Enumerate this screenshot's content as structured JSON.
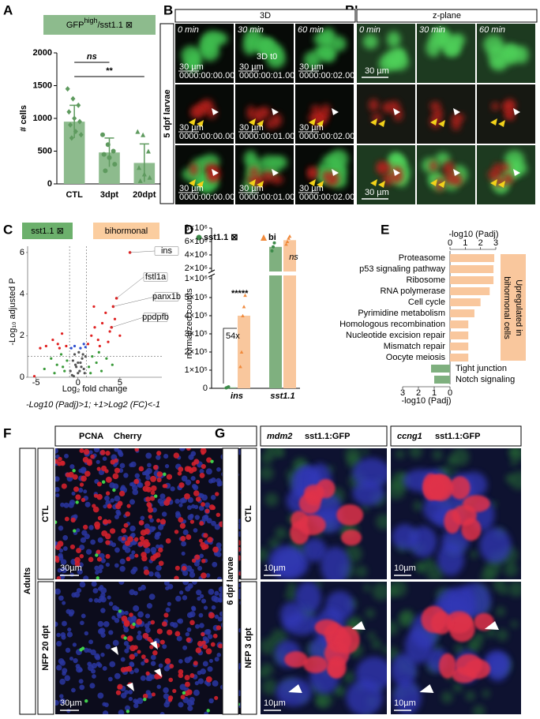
{
  "chart_data": [
    {
      "panel": "A",
      "type": "bar",
      "title": "GFP",
      "title_superscript": "high",
      "title_suffix": "/sst1.1 ⊠",
      "y_label": "# cells",
      "categories": [
        "CTL",
        "3dpt",
        "20dpt"
      ],
      "values": [
        950,
        480,
        320
      ],
      "errors": [
        250,
        220,
        290
      ],
      "points": [
        [
          1450,
          1300,
          1200,
          1100,
          1000,
          950,
          900,
          800,
          750,
          700
        ],
        [
          750,
          600,
          500,
          450,
          400,
          300,
          200
        ],
        [
          800,
          750,
          500,
          250,
          150,
          100,
          50
        ]
      ],
      "color": "#8dbb8d",
      "point_color": "#5e9a5e",
      "ylim": [
        0,
        2000
      ],
      "yticks": [
        0,
        500,
        1000,
        1500,
        2000
      ],
      "annotations": [
        "ns",
        "**"
      ]
    },
    {
      "panel": "C",
      "type": "scatter",
      "labels": [
        "sst1.1 ⊠",
        "bihormonal"
      ],
      "label_colors": [
        "#6cb06c",
        "#fbcd9f"
      ],
      "x_label": "Log₂ fold change",
      "y_label": "-Log₁₀ adjusted P",
      "caption": "-Log10 (Padj)>1; +1>Log2 (FC)<-1",
      "xlim": [
        -6,
        10
      ],
      "xticks": [
        -5,
        0,
        5
      ],
      "ylim": [
        0,
        6.3
      ],
      "yticks": [
        0,
        2,
        4,
        6
      ],
      "x_thresholds": [
        -1,
        1
      ],
      "y_threshold": 1,
      "series": [
        {
          "color": "#555555",
          "x": [
            -0.9,
            -0.6,
            -0.4,
            -0.2,
            0,
            0.1,
            0.3,
            0.5,
            0.7,
            0.9,
            -0.7,
            -0.3,
            0.2,
            0.6,
            0.8,
            -0.5,
            0.4,
            0
          ],
          "y": [
            0.3,
            0.8,
            1.1,
            0.5,
            0.2,
            1.2,
            0.7,
            0.9,
            0.4,
            1.0,
            0.1,
            0.6,
            0.3,
            1.1,
            0.2,
            0.05,
            0.5,
            0.7
          ]
        },
        {
          "color": "#3a9a3a",
          "x": [
            -4,
            -3.2,
            -2.5,
            -2,
            -1.6,
            -1.3,
            1.3,
            1.7,
            2.2,
            2.8,
            3.4,
            4.1,
            -2.8,
            2.5,
            -1.8,
            1.5
          ],
          "y": [
            0.4,
            0.9,
            0.6,
            1.1,
            0.3,
            0.8,
            0.5,
            1.0,
            0.7,
            0.3,
            0.9,
            0.6,
            0.2,
            1.2,
            0.5,
            0.2
          ]
        },
        {
          "color": "#e02020",
          "x": [
            -5.2,
            -3.8,
            -3,
            -2.4,
            -1.9,
            -1.4,
            1.2,
            1.6,
            2,
            2.4,
            2.9,
            3.3,
            3.8,
            4.4,
            5,
            1.9,
            2.6,
            3.6,
            -2.2,
            -4.5
          ],
          "y": [
            0.05,
            1.5,
            1.8,
            1.6,
            2.1,
            1.5,
            1.6,
            2.0,
            2.4,
            1.8,
            2.6,
            3.1,
            2.2,
            2.8,
            2.0,
            3.4,
            1.5,
            1.7,
            1.4,
            1.4
          ]
        },
        {
          "color": "#3050d0",
          "x": [
            -0.8,
            -0.4,
            0.3,
            0.7,
            0.9
          ],
          "y": [
            1.4,
            1.5,
            1.4,
            1.6,
            1.45
          ]
        }
      ],
      "highlights": [
        {
          "label": "ins",
          "x": 6.2,
          "y": 6.0
        },
        {
          "label": "fstl1a",
          "x": 4.6,
          "y": 3.8
        },
        {
          "label": "panx1b",
          "x": 4.2,
          "y": 3.4
        },
        {
          "label": "ppdpfb",
          "x": 4.0,
          "y": 2.4
        }
      ]
    },
    {
      "panel": "D",
      "type": "bar",
      "y_label": "normalized counts",
      "categories": [
        "ins",
        "sst1.1"
      ],
      "series": [
        {
          "name": "sst1.1 ⊠",
          "color": "#3d8a4a",
          "bar_color": "#7fb07f",
          "values": [
            5000,
            5200000
          ],
          "points": [
            [
              2000,
              5000,
              8000
            ],
            [
              4600000,
              5200000,
              5800000
            ]
          ]
        },
        {
          "name": "bi",
          "color": "#f08a3c",
          "bar_color": "#f9c79d",
          "values": [
            400000,
            6200000
          ],
          "points": [
            [
              120000,
              200000,
              400000,
              450000,
              560000
            ],
            [
              5600000,
              6000000,
              6500000,
              6800000
            ]
          ]
        }
      ],
      "ylim": [
        0,
        8000000
      ],
      "axis_break": true,
      "yticks": [
        0,
        {
          "value": 100000,
          "label": "1×10⁵"
        },
        {
          "value": 200000,
          "label": "2×10⁵"
        },
        {
          "value": 300000,
          "label": "3×10⁵"
        },
        {
          "value": 400000,
          "label": "4×10⁵"
        },
        {
          "value": 500000,
          "label": "5×10⁵"
        },
        {
          "value": 1000000,
          "label": "1×10⁶"
        },
        {
          "value": 2000000,
          "label": "2×10⁶"
        },
        {
          "value": 4000000,
          "label": "4×10⁶"
        },
        {
          "value": 6000000,
          "label": "6×10⁶"
        },
        {
          "value": 8000000,
          "label": "8×10⁶"
        }
      ],
      "annotations": [
        "54x",
        "*****",
        "ns"
      ]
    },
    {
      "panel": "E",
      "type": "bar",
      "orientation": "horizontal",
      "categories": [
        "Proteasome",
        "p53 signaling pathway",
        "Ribosome",
        "RNA polymerase",
        "Cell cycle",
        "Pyrimidine metabolism",
        "Homologous recombination",
        "Nucleotide excision repair",
        "Mismatch repair",
        "Oocyte meiosis",
        "Tight junction",
        "Notch signaling"
      ],
      "series": [
        {
          "color": "#f9c79d",
          "values": [
            2.9,
            2.85,
            2.85,
            2.6,
            2.0,
            1.6,
            1.2,
            1.2,
            1.2,
            1.2,
            null,
            null
          ]
        },
        {
          "color": "#7fb07f",
          "axis": "x2",
          "values": [
            null,
            null,
            null,
            null,
            null,
            null,
            null,
            null,
            null,
            null,
            1.2,
            1.0
          ]
        }
      ],
      "x_label": "-log10 (Padj)",
      "xlim": [
        0,
        3
      ],
      "xticks": [
        0,
        1,
        2,
        3
      ],
      "x2_label": "-log10 (Padj)",
      "x2lim": [
        3,
        0
      ],
      "x2ticks": [
        3,
        2,
        1,
        0
      ],
      "annotation_lines": [
        "Upregulated in",
        "bihormonal cells"
      ],
      "annotation_color": "#f9c79d"
    }
  ],
  "panels": {
    "B": {
      "letter": "B",
      "header": "3D",
      "times": [
        "0 min",
        "30 min",
        "60 min"
      ],
      "label": "3D t0",
      "scale": "30 µm",
      "timestamps": [
        "0000:00:00.000",
        "0000:00:01.000",
        "0000:00:02.000"
      ],
      "side_label": "5 dpf larvae"
    },
    "B_prime": {
      "letter": "B'",
      "header": "z-plane",
      "scale": "30 µm"
    },
    "F": {
      "letter": "F",
      "stains": [
        "PCNA",
        "Cherry"
      ],
      "side_label": "Adults",
      "rows": [
        "CTL",
        "NFP 20 dpt"
      ],
      "scale": "30µm"
    },
    "G": {
      "letter": "G",
      "columns": [
        [
          "mdm2",
          "sst1.1:GFP"
        ],
        [
          "ccng1",
          "sst1.1:GFP"
        ]
      ],
      "side_label": "6 dpf larvae",
      "rows": [
        "CTL",
        "NFP 3 dpt"
      ],
      "scale": "10µm"
    }
  }
}
